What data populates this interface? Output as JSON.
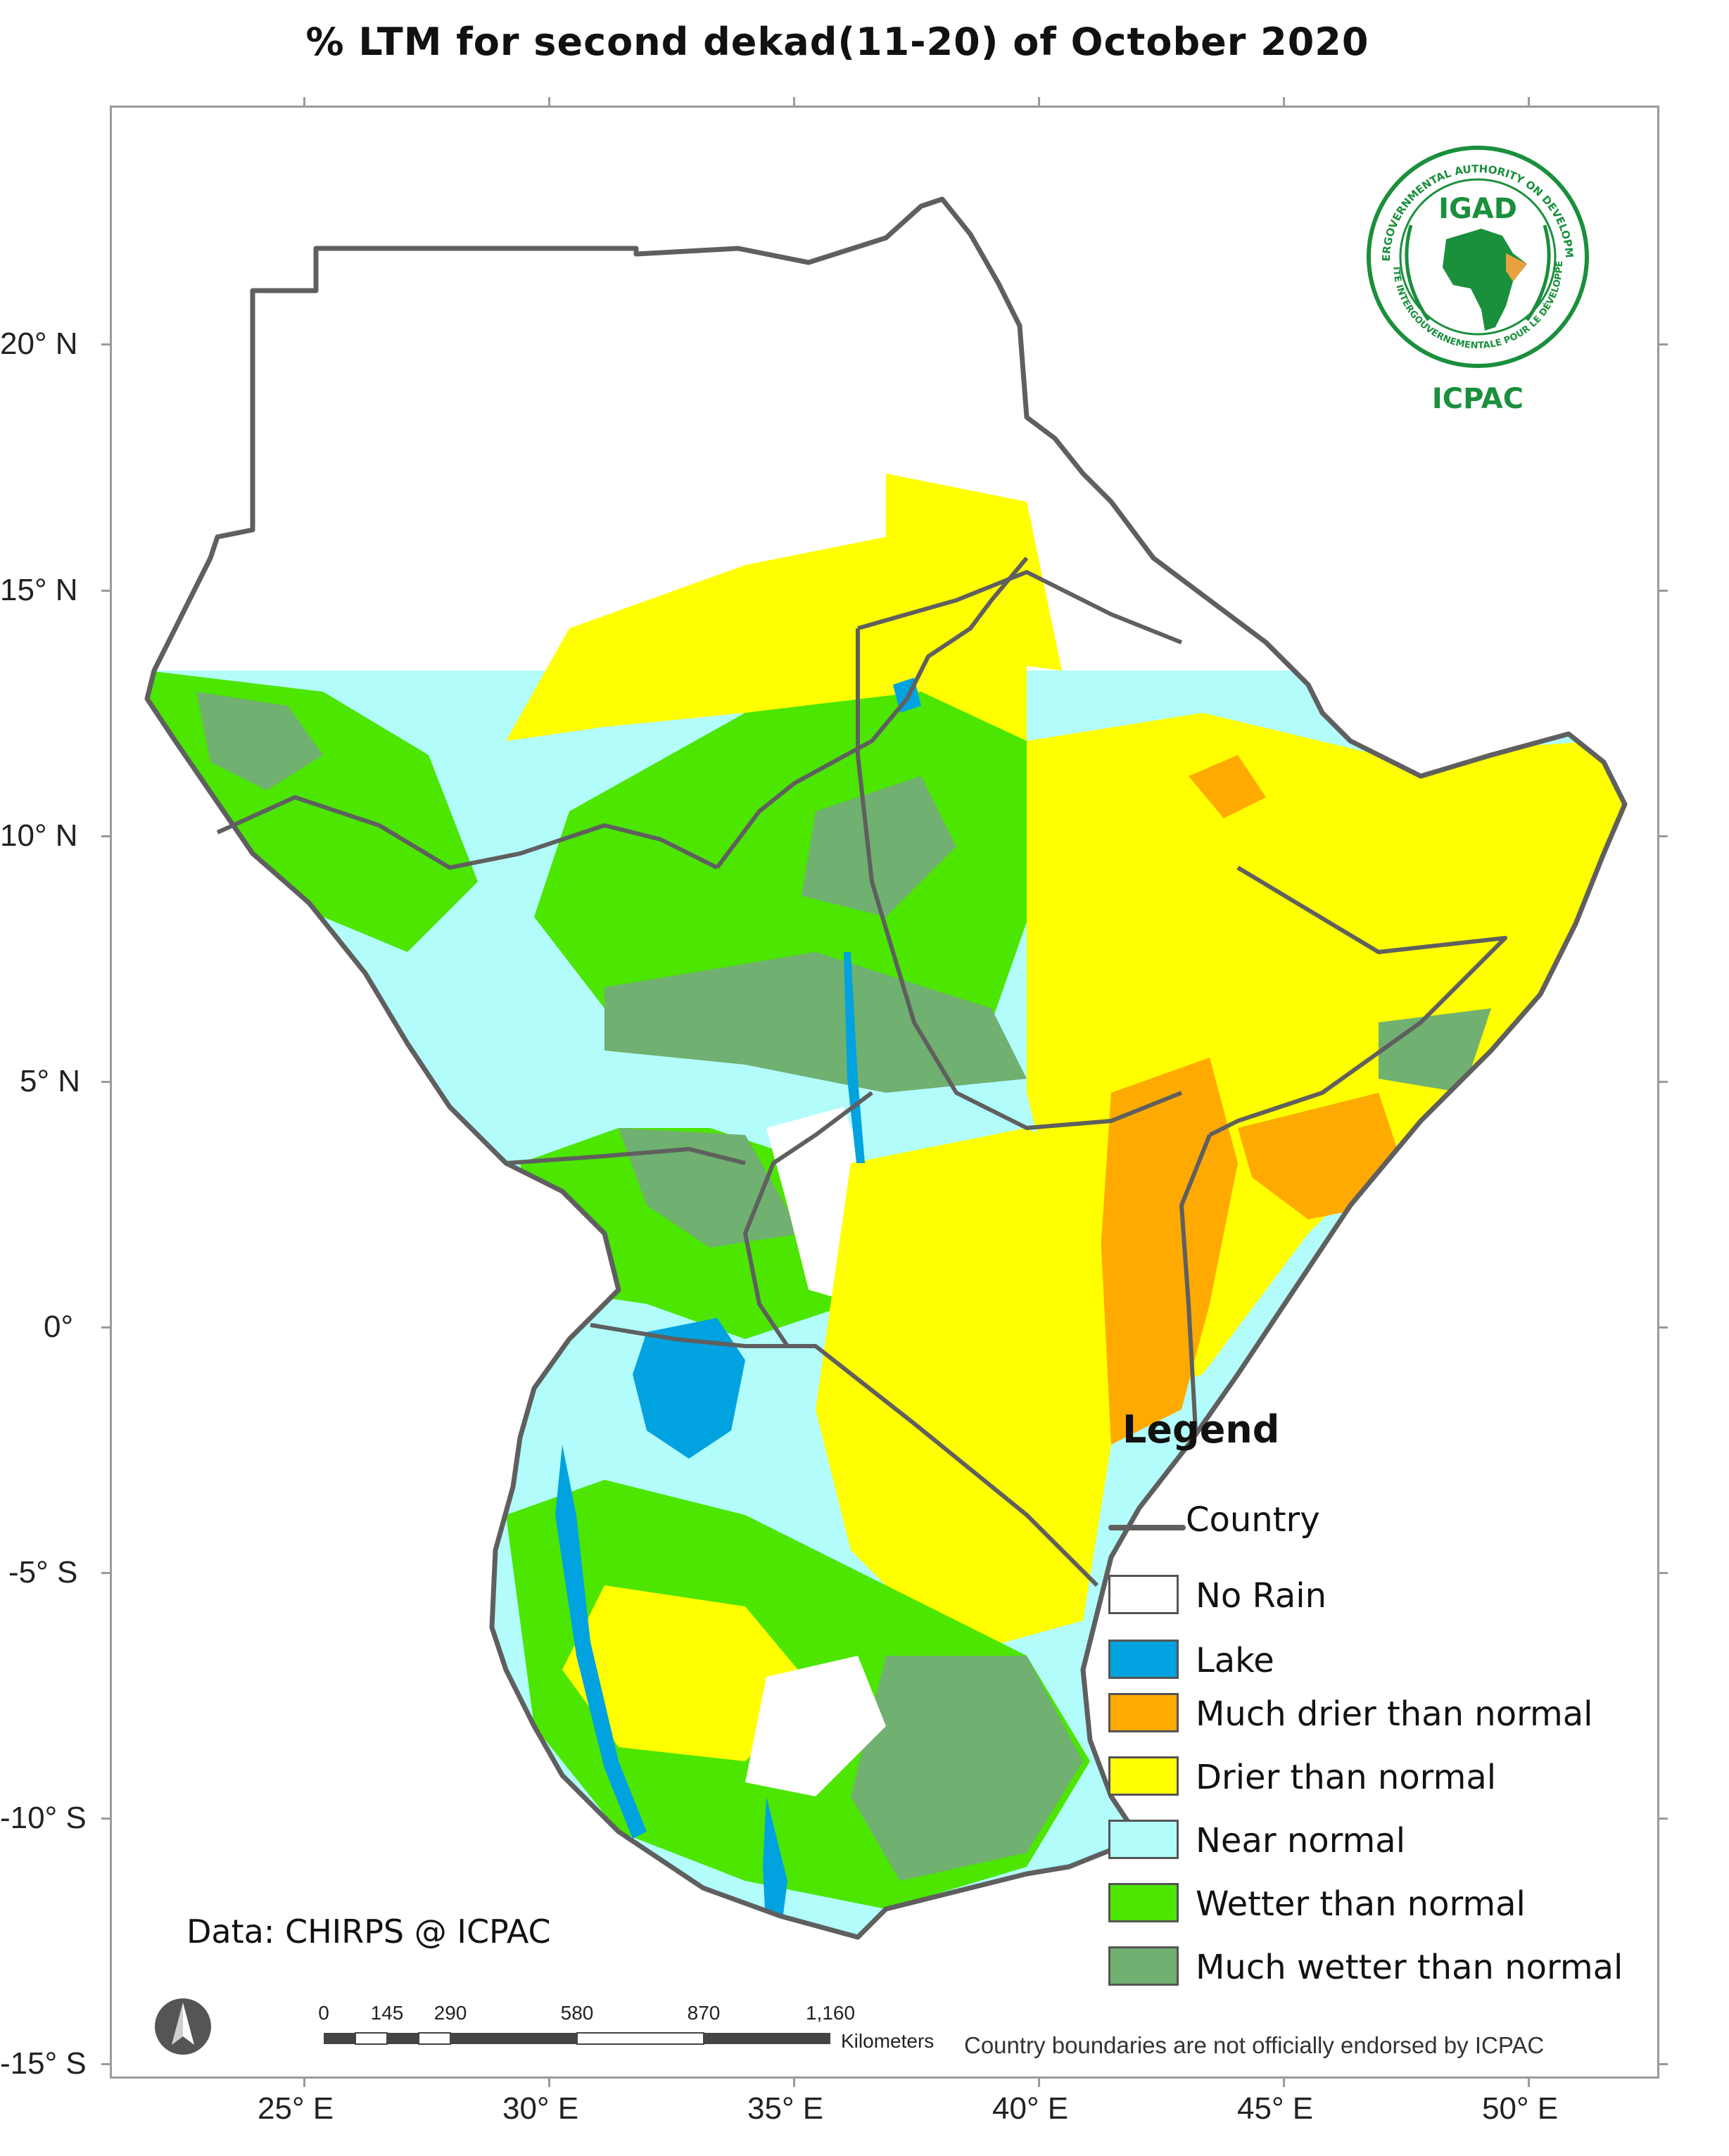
{
  "title": "% LTM  for  second dekad(11-20)  of October 2020",
  "axes": {
    "lat_labels": [
      "20° N",
      "15° N",
      "10° N",
      "5° N",
      "0°",
      "-5° S",
      "-10° S",
      "-15° S"
    ],
    "lon_labels": [
      "25° E",
      "30° E",
      "35° E",
      "40° E",
      "45° E",
      "50° E"
    ]
  },
  "legend": {
    "title": "Legend",
    "country_label": "Country",
    "items": [
      {
        "label": "No Rain",
        "color": "#ffffff"
      },
      {
        "label": "Lake",
        "color": "#00a3e0"
      },
      {
        "label": "Much drier than normal",
        "color": "#ffaa00"
      },
      {
        "label": "Drier than normal",
        "color": "#ffff00"
      },
      {
        "label": "Near normal",
        "color": "#b3fcfc"
      },
      {
        "label": "Wetter than normal",
        "color": "#4ce600"
      },
      {
        "label": "Much wetter than normal",
        "color": "#70b070"
      }
    ],
    "country_color": "#5f5f5f"
  },
  "source_note": "Data: CHIRPS @ ICPAC",
  "disclaimer": "Country boundaries are not officially endorsed by ICPAC",
  "scale_bar": {
    "labels": [
      "0",
      "145",
      "290",
      "580",
      "870",
      "1,160"
    ],
    "units": "Kilometers"
  },
  "logo": {
    "org_short": "IGAD",
    "center_name": "ICPAC",
    "ring_text_top": "INTERGOVERNMENTAL AUTHORITY ON DEVELOPMENT",
    "ring_text_bottom": "AUTORITÉ INTERGOUVERNEMENTALE POUR LE DÉVELOPPEMENT",
    "brand_color": "#1a8f3c",
    "accent_color": "#e8a040"
  },
  "north_arrow_icon": "north-arrow-icon"
}
